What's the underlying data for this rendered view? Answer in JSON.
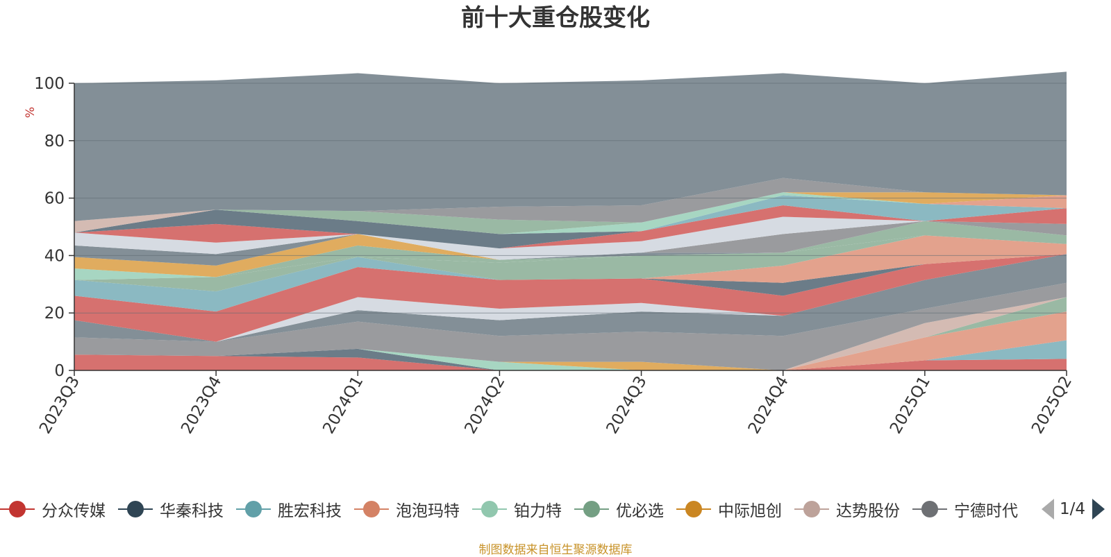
{
  "chart_data": {
    "type": "area",
    "title": "前十大重仓股变化",
    "ylabel": "%",
    "ylim": [
      0,
      100
    ],
    "y_ticks": [
      "0",
      "20",
      "40",
      "60",
      "80",
      "100"
    ],
    "categories": [
      "2023Q3",
      "2023Q4",
      "2024Q1",
      "2024Q2",
      "2024Q3",
      "2024Q4",
      "2025Q1",
      "2025Q2"
    ],
    "grid": true,
    "stacked": true,
    "layers": [
      {
        "color": "#d6716f",
        "values": [
          5.5,
          5,
          4.5,
          0,
          0,
          0,
          3.5,
          4
        ]
      },
      {
        "color": "#6b7c88",
        "values": [
          0,
          0,
          3,
          0,
          0,
          0,
          0,
          0
        ]
      },
      {
        "color": "#8bb9c2",
        "values": [
          0,
          0,
          0,
          0,
          0,
          0,
          0,
          6.5
        ]
      },
      {
        "color": "#e3a28d",
        "values": [
          0,
          0,
          0,
          0,
          0,
          0,
          8,
          10
        ]
      },
      {
        "color": "#a7d6c2",
        "values": [
          0,
          0,
          0,
          3,
          0,
          0,
          0,
          0
        ]
      },
      {
        "color": "#9ab9a4",
        "values": [
          0,
          0,
          0,
          0,
          0,
          0,
          0,
          5
        ]
      },
      {
        "color": "#e0ac5f",
        "values": [
          0,
          0,
          0,
          0,
          3,
          0,
          0,
          0
        ]
      },
      {
        "color": "#d4bbb3",
        "values": [
          0,
          0,
          0,
          0,
          0,
          0,
          5,
          0
        ]
      },
      {
        "color": "#9a9b9e",
        "values": [
          6,
          5,
          9.5,
          9,
          10.5,
          12,
          5,
          5
        ]
      },
      {
        "color": "#838f97",
        "values": [
          6,
          0,
          4,
          5.5,
          7,
          7,
          10,
          10
        ]
      },
      {
        "color": "#d6dbe2",
        "values": [
          0,
          0,
          4.5,
          4,
          3,
          0,
          0,
          0
        ]
      },
      {
        "color": "#d6716f",
        "values": [
          8.5,
          10.5,
          10.5,
          10,
          8.5,
          7,
          5.5,
          0
        ]
      },
      {
        "color": "#6b7c88",
        "values": [
          0,
          0,
          0,
          0,
          0,
          4.5,
          0,
          0
        ]
      },
      {
        "color": "#e3a28d",
        "values": [
          0,
          0,
          0,
          0,
          0,
          6,
          10,
          3.5
        ]
      },
      {
        "color": "#8bb9c2",
        "values": [
          5.5,
          7,
          3.5,
          0,
          0,
          0,
          0,
          0
        ]
      },
      {
        "color": "#9ab9a4",
        "values": [
          0,
          5,
          0,
          6,
          8,
          4.5,
          0,
          0
        ]
      },
      {
        "color": "#a7d6c2",
        "values": [
          4,
          0,
          0,
          0,
          0,
          0,
          0,
          0
        ]
      },
      {
        "color": "#9ab9a4",
        "values": [
          0,
          0,
          4,
          1,
          0,
          0,
          5,
          3
        ]
      },
      {
        "color": "#e0ac5f",
        "values": [
          4,
          4,
          4,
          0,
          0,
          0,
          0,
          0
        ]
      },
      {
        "color": "#838f97",
        "values": [
          4,
          4,
          0,
          0,
          1,
          0,
          0,
          0
        ]
      },
      {
        "color": "#9a9b9e",
        "values": [
          0,
          0,
          0,
          0,
          0,
          6.5,
          0,
          4
        ]
      },
      {
        "color": "#d6dbe2",
        "values": [
          4.5,
          4,
          0,
          4,
          4,
          6,
          0,
          0
        ]
      },
      {
        "color": "#d6716f",
        "values": [
          0,
          6.5,
          0,
          0,
          3.5,
          4,
          0,
          5.5
        ]
      },
      {
        "color": "#8bb9c2",
        "values": [
          0,
          0,
          0,
          0,
          0,
          3.5,
          6,
          0
        ]
      },
      {
        "color": "#6b7c88",
        "values": [
          0,
          5,
          4.5,
          5,
          0,
          0,
          0,
          0
        ]
      },
      {
        "color": "#e3a28d",
        "values": [
          0,
          0,
          0,
          0,
          0,
          0,
          0,
          4.5
        ]
      },
      {
        "color": "#a7d6c2",
        "values": [
          0,
          0,
          0,
          0,
          3,
          1,
          0,
          0
        ]
      },
      {
        "color": "#9ab9a4",
        "values": [
          0,
          0,
          3.5,
          5,
          0,
          0,
          0,
          0
        ]
      },
      {
        "color": "#e0ac5f",
        "values": [
          0,
          0,
          0,
          0,
          0,
          0,
          4,
          0
        ]
      },
      {
        "color": "#d4bbb3",
        "values": [
          4,
          0,
          0,
          0,
          0,
          0,
          0,
          0
        ]
      },
      {
        "color": "#9a9b9e",
        "values": [
          0,
          0,
          0,
          4.5,
          6,
          5,
          0,
          0
        ]
      },
      {
        "color": "#838f97",
        "values": [
          48,
          45,
          48,
          43,
          43.5,
          36.5,
          38,
          43
        ]
      }
    ]
  },
  "legend": {
    "items": [
      {
        "name": "分众传媒",
        "color": "#c23531"
      },
      {
        "name": "华秦科技",
        "color": "#2f4554"
      },
      {
        "name": "胜宏科技",
        "color": "#61a0a8"
      },
      {
        "name": "泡泡玛特",
        "color": "#d48265"
      },
      {
        "name": "铂力特",
        "color": "#91c7ae"
      },
      {
        "name": "优必选",
        "color": "#749f83"
      },
      {
        "name": "中际旭创",
        "color": "#ca8622"
      },
      {
        "name": "达势股份",
        "color": "#bda29a"
      },
      {
        "name": "宁德时代",
        "color": "#6e7074"
      }
    ],
    "page_indicator": "1/4"
  },
  "footer": {
    "source": "制图数据来自恒生聚源数据库"
  }
}
